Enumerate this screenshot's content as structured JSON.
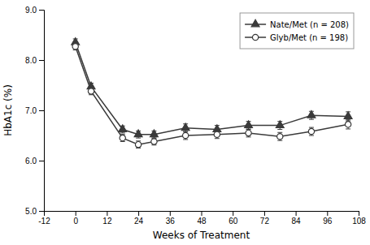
{
  "chart_data": {
    "type": "line",
    "x": [
      0,
      6,
      18,
      24,
      30,
      42,
      54,
      66,
      78,
      90,
      104
    ],
    "series": [
      {
        "name": "Nate/Met (n = 208)",
        "color": "#3a3a3a",
        "marker": "triangle",
        "line_style": "solid",
        "values": [
          8.35,
          7.47,
          6.62,
          6.52,
          6.52,
          6.65,
          6.62,
          6.7,
          6.7,
          6.9,
          6.88
        ],
        "errors": [
          0.07,
          0.07,
          0.07,
          0.07,
          0.07,
          0.08,
          0.08,
          0.08,
          0.08,
          0.08,
          0.09
        ]
      },
      {
        "name": "Glyb/Met (n = 198)",
        "color": "#3a3a3a",
        "marker": "open-circle",
        "line_style": "solid",
        "values": [
          8.27,
          7.38,
          6.45,
          6.32,
          6.38,
          6.5,
          6.52,
          6.55,
          6.48,
          6.58,
          6.72
        ],
        "errors": [
          0.07,
          0.07,
          0.07,
          0.07,
          0.07,
          0.08,
          0.08,
          0.08,
          0.08,
          0.08,
          0.09
        ]
      }
    ],
    "xlabel": "Weeks of Treatment",
    "ylabel": "HbA1c (%)",
    "xlim": [
      -12,
      108
    ],
    "xticks": [
      -12,
      0,
      12,
      24,
      36,
      48,
      60,
      72,
      84,
      96,
      108
    ],
    "ylim": [
      5.0,
      9.0
    ],
    "yticks": [
      {
        "value": 5.0,
        "label": "5.0"
      },
      {
        "value": 6.0,
        "label": "6.0"
      },
      {
        "value": 7.0,
        "label": "7.0"
      },
      {
        "value": 8.0,
        "label": "8.0"
      },
      {
        "value": 9.0,
        "label": "9.0"
      }
    ],
    "grid": false,
    "legend": "upper right"
  }
}
